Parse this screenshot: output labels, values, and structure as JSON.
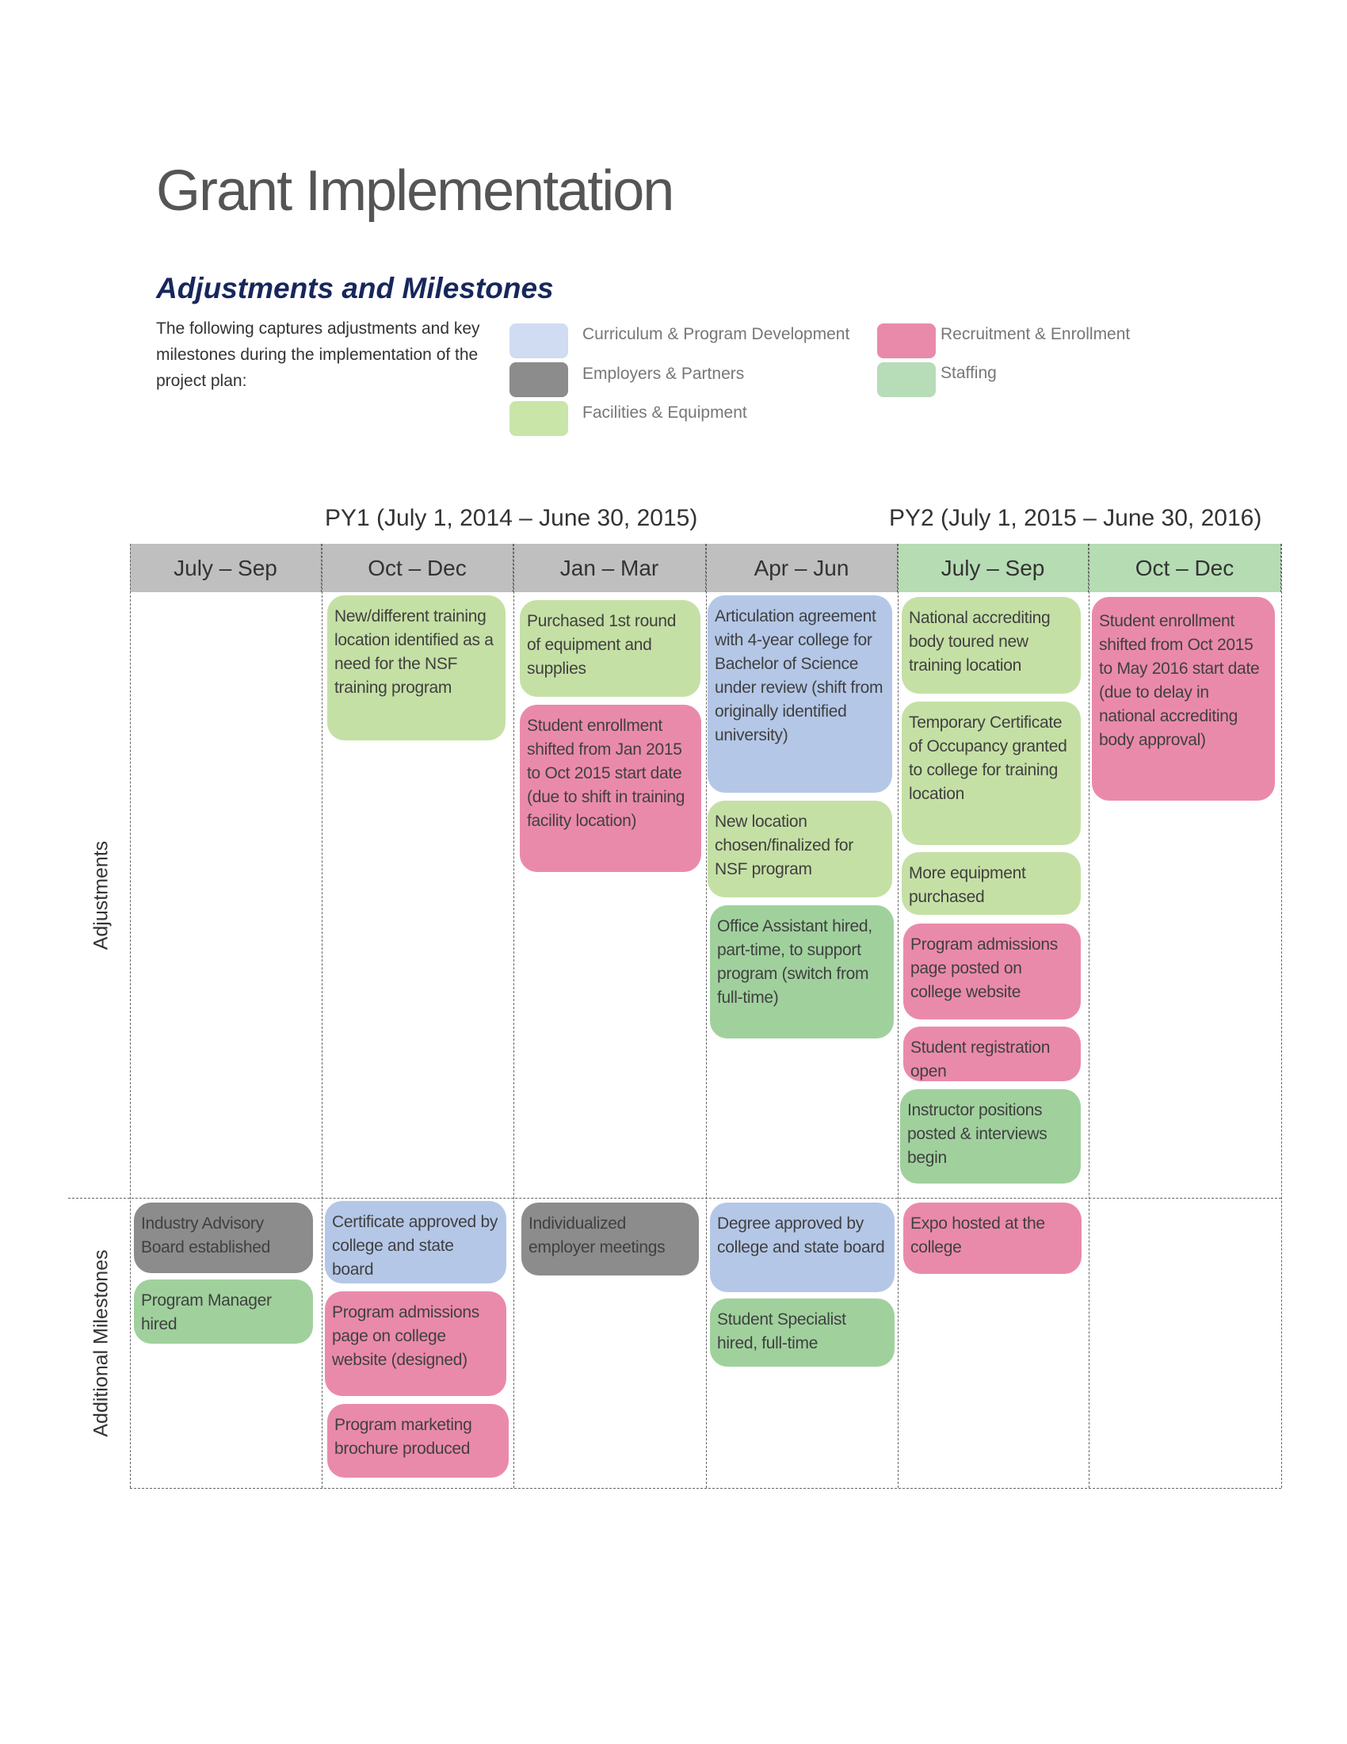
{
  "header": {
    "title": "Grant Implementation",
    "subtitle": "Adjustments and Milestones",
    "intro": "The following captures adjustments and key milestones during the implementation of the project plan:"
  },
  "colors": {
    "curriculum": "#b4c7e7",
    "employers": "#8c8c8c",
    "facilities": "#c5e0a5",
    "recruitment": "#ea8aaa",
    "staffing": "#a0d19d"
  },
  "legend": [
    {
      "key": "curriculum",
      "label": "Curriculum & Program Development",
      "color": "#cfdcf2"
    },
    {
      "key": "employers",
      "label": "Employers & Partners",
      "color": "#8c8c8c"
    },
    {
      "key": "facilities",
      "label": "Facilities & Equipment",
      "color": "#c9e5a8"
    },
    {
      "key": "recruitment",
      "label": "Recruitment & Enrollment",
      "color": "#ea8aaa"
    },
    {
      "key": "staffing",
      "label": "Staffing",
      "color": "#b7dcb8"
    }
  ],
  "periods": {
    "py1": "PY1 (July 1, 2014 – June 30, 2015)",
    "py2": "PY2 (July 1, 2015 – June 30, 2016)"
  },
  "columns": [
    "July – Sep",
    "Oct – Dec",
    "Jan – Mar",
    "Apr – Jun",
    "July – Sep",
    "Oct – Dec"
  ],
  "rows": {
    "adjustments": "Adjustments",
    "milestones": "Additional Milestones"
  },
  "adjustments": [
    {
      "col": 1,
      "category": "facilities",
      "text": "New/different training location identified as a need for the NSF training program"
    },
    {
      "col": 2,
      "category": "facilities",
      "text": "Purchased 1st round of equipment and supplies"
    },
    {
      "col": 2,
      "category": "recruitment",
      "text": "Student enrollment shifted from Jan 2015 to Oct 2015 start date (due to shift in training facility location)"
    },
    {
      "col": 3,
      "category": "curriculum",
      "text": "Articulation agreement with 4-year college for Bachelor of Science under review (shift from originally identified university)"
    },
    {
      "col": 3,
      "category": "facilities",
      "text": "New location chosen/finalized for NSF program"
    },
    {
      "col": 3,
      "category": "staffing",
      "text": "Office Assistant hired, part-time, to support program (switch from full-time)"
    },
    {
      "col": 4,
      "category": "facilities",
      "text": "National accrediting body toured new training location"
    },
    {
      "col": 4,
      "category": "facilities",
      "text": "Temporary Certificate of Occupancy granted to college for training location"
    },
    {
      "col": 4,
      "category": "facilities",
      "text": "More equipment purchased"
    },
    {
      "col": 4,
      "category": "recruitment",
      "text": "Program admissions page posted on college website"
    },
    {
      "col": 4,
      "category": "recruitment",
      "text": "Student registration open"
    },
    {
      "col": 4,
      "category": "staffing",
      "text": "Instructor positions posted & interviews begin"
    },
    {
      "col": 5,
      "category": "recruitment",
      "text": "Student enrollment shifted from Oct 2015 to May 2016 start date (due to delay in national accrediting body approval)"
    }
  ],
  "milestones": [
    {
      "col": 0,
      "category": "employers",
      "text": "Industry Advisory Board established"
    },
    {
      "col": 0,
      "category": "staffing",
      "text": "Program Manager hired"
    },
    {
      "col": 1,
      "category": "curriculum",
      "text": "Certificate approved by college and state board"
    },
    {
      "col": 1,
      "category": "recruitment",
      "text": "Program admissions page on college website (designed)"
    },
    {
      "col": 1,
      "category": "recruitment",
      "text": "Program marketing brochure produced"
    },
    {
      "col": 2,
      "category": "employers",
      "text": "Individualized employer meetings"
    },
    {
      "col": 3,
      "category": "curriculum",
      "text": "Degree approved by college and state board"
    },
    {
      "col": 3,
      "category": "staffing",
      "text": "Student Specialist hired, full-time"
    },
    {
      "col": 4,
      "category": "recruitment",
      "text": "Expo hosted at the college"
    }
  ]
}
